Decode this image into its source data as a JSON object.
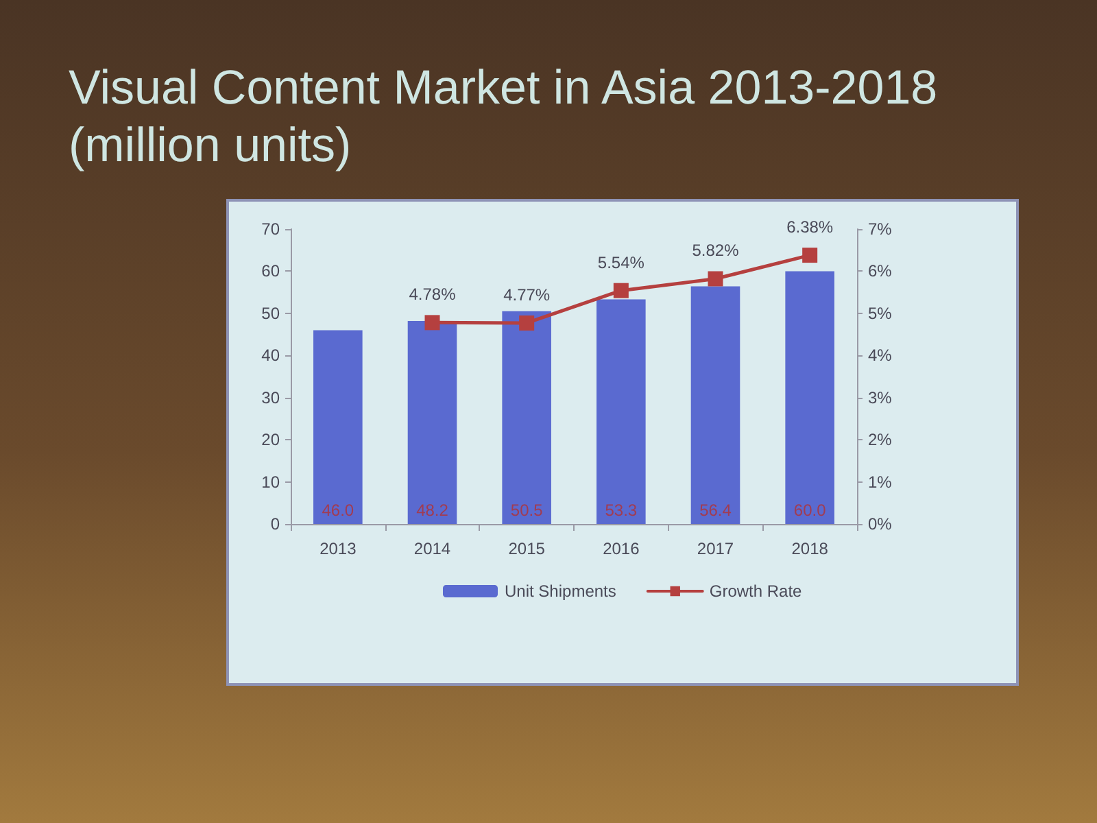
{
  "chart_data": {
    "type": "bar",
    "title": "Visual Content Market in Asia 2013-2018 (million units)",
    "categories": [
      "2013",
      "2014",
      "2015",
      "2016",
      "2017",
      "2018"
    ],
    "series": [
      {
        "name": "Unit Shipments",
        "color": "#5a6ad0",
        "values": [
          46.0,
          48.2,
          50.5,
          53.3,
          56.4,
          60.0
        ],
        "value_labels": [
          "46.0",
          "48.2",
          "50.5",
          "53.3",
          "56.4",
          "60.0"
        ]
      },
      {
        "name": "Growth Rate",
        "type": "line",
        "axis": "y2",
        "color": "#b5403f",
        "values": [
          null,
          4.78,
          4.77,
          5.54,
          5.82,
          6.38
        ],
        "value_labels": [
          null,
          "4.78%",
          "4.77%",
          "5.54%",
          "5.82%",
          "6.38%"
        ]
      }
    ],
    "ylim": [
      0,
      70
    ],
    "yticks": [
      0,
      10,
      20,
      30,
      40,
      50,
      60,
      70
    ],
    "y2lim": [
      0,
      7
    ],
    "y2ticks": [
      {
        "value": 0,
        "label": "0%"
      },
      {
        "value": 1,
        "label": "1%"
      },
      {
        "value": 2,
        "label": "2%"
      },
      {
        "value": 3,
        "label": "3%"
      },
      {
        "value": 4,
        "label": "4%"
      },
      {
        "value": 5,
        "label": "5%"
      },
      {
        "value": 6,
        "label": "6%"
      },
      {
        "value": 7,
        "label": "7%"
      }
    ],
    "grid": false,
    "legend": "bottom",
    "marker": "square",
    "line_style": "solid"
  }
}
